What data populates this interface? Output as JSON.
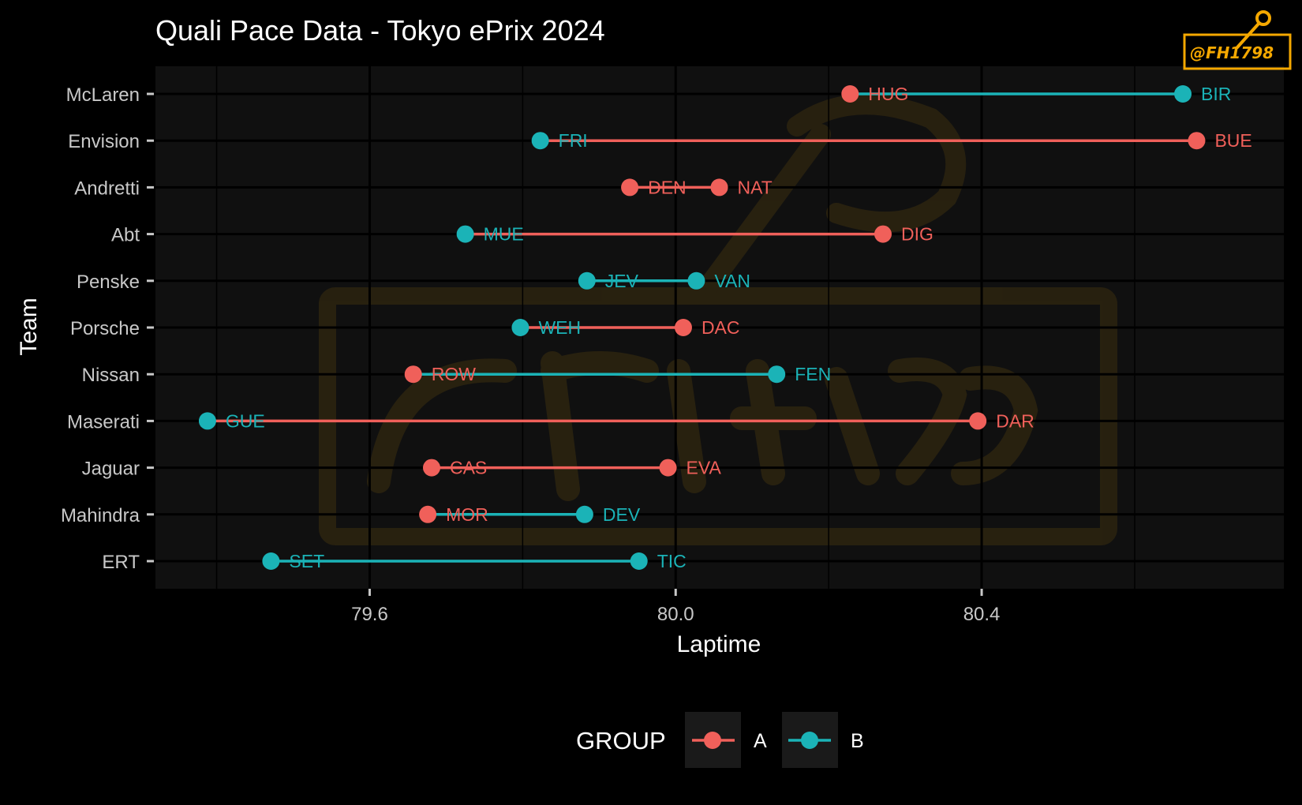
{
  "chart_data": {
    "type": "dumbbell",
    "title": "Quali Pace Data - Tokyo ePrix 2024",
    "xlabel": "Laptime",
    "ylabel": "Team",
    "xlim": [
      79.32,
      80.795
    ],
    "xticks": [
      79.6,
      80.0,
      80.4
    ],
    "xtick_labels": [
      "79.6",
      "80.0",
      "80.4"
    ],
    "grid": true,
    "legend": {
      "title": "GROUP",
      "position": "bottom",
      "entries": [
        "A",
        "B"
      ]
    },
    "colors": {
      "A": "#f0605a",
      "B": "#1bb3b7"
    },
    "teams": [
      {
        "team": "McLaren",
        "slow": {
          "driver": "BIR",
          "laptime": 80.663,
          "group": "B"
        },
        "fast": {
          "driver": "HUG",
          "laptime": 80.228,
          "group": "A"
        }
      },
      {
        "team": "Envision",
        "slow": {
          "driver": "BUE",
          "laptime": 80.681,
          "group": "A"
        },
        "fast": {
          "driver": "FRI",
          "laptime": 79.823,
          "group": "B"
        }
      },
      {
        "team": "Andretti",
        "slow": {
          "driver": "NAT",
          "laptime": 80.057,
          "group": "A"
        },
        "fast": {
          "driver": "DEN",
          "laptime": 79.94,
          "group": "A"
        }
      },
      {
        "team": "Abt",
        "slow": {
          "driver": "DIG",
          "laptime": 80.271,
          "group": "A"
        },
        "fast": {
          "driver": "MUE",
          "laptime": 79.725,
          "group": "B"
        }
      },
      {
        "team": "Penske",
        "slow": {
          "driver": "VAN",
          "laptime": 80.027,
          "group": "B"
        },
        "fast": {
          "driver": "JEV",
          "laptime": 79.884,
          "group": "B"
        }
      },
      {
        "team": "Porsche",
        "slow": {
          "driver": "DAC",
          "laptime": 80.01,
          "group": "A"
        },
        "fast": {
          "driver": "WEH",
          "laptime": 79.797,
          "group": "B"
        }
      },
      {
        "team": "Nissan",
        "slow": {
          "driver": "FEN",
          "laptime": 80.132,
          "group": "B"
        },
        "fast": {
          "driver": "ROW",
          "laptime": 79.657,
          "group": "A"
        }
      },
      {
        "team": "Maserati",
        "slow": {
          "driver": "DAR",
          "laptime": 80.395,
          "group": "A"
        },
        "fast": {
          "driver": "GUE",
          "laptime": 79.388,
          "group": "B"
        }
      },
      {
        "team": "Jaguar",
        "slow": {
          "driver": "EVA",
          "laptime": 79.99,
          "group": "A"
        },
        "fast": {
          "driver": "CAS",
          "laptime": 79.681,
          "group": "A"
        }
      },
      {
        "team": "Mahindra",
        "slow": {
          "driver": "DEV",
          "laptime": 79.881,
          "group": "B"
        },
        "fast": {
          "driver": "MOR",
          "laptime": 79.676,
          "group": "A"
        }
      },
      {
        "team": "ERT",
        "slow": {
          "driver": "TIC",
          "laptime": 79.952,
          "group": "B"
        },
        "fast": {
          "driver": "SET",
          "laptime": 79.471,
          "group": "B"
        }
      }
    ]
  },
  "watermark": {
    "text": "@FH1798"
  }
}
